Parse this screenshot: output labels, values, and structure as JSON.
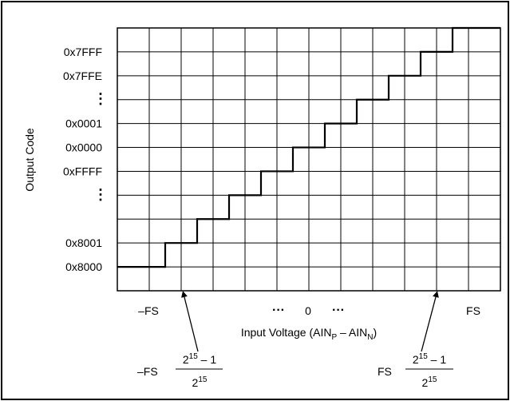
{
  "chart_data": {
    "type": "line",
    "step": true,
    "ylabel": "Output Code",
    "xlabel_parts": {
      "main": "Input Voltage (AIN",
      "sub_p": "P",
      "minus": " – AIN",
      "sub_n": "N",
      "close": ")"
    },
    "y_ticks": [
      "0x7FFF",
      "0x7FFE",
      "⋮",
      "0x0001",
      "0x0000",
      "0xFFFF",
      "⋮",
      "0x8001",
      "0x8000"
    ],
    "x_ticks": {
      "left": "–FS",
      "center_dots_left": "···",
      "center": "0",
      "center_dots_right": "···",
      "right": "FS"
    },
    "grid": true,
    "transfer_steps": [
      {
        "x": 0,
        "code": "0x8000"
      },
      {
        "x": 1.5,
        "code": "0x8001"
      },
      {
        "x": 2.5,
        "code": "…"
      },
      {
        "x": 3.5,
        "code": "…"
      },
      {
        "x": 4.5,
        "code": "…"
      },
      {
        "x": 5.5,
        "code": "0xFFFF"
      },
      {
        "x": 6.5,
        "code": "0x0000"
      },
      {
        "x": 7.5,
        "code": "0x0001"
      },
      {
        "x": 8.5,
        "code": "…"
      },
      {
        "x": 9.5,
        "code": "0x7FFE"
      },
      {
        "x": 10.5,
        "code": "0x7FFF"
      }
    ],
    "annotations": [
      {
        "prefix": "–FS",
        "numerator_base": "2",
        "numerator_exp": "15",
        "numerator_rest": " – 1",
        "denominator_base": "2",
        "denominator_exp": "15"
      },
      {
        "prefix": "FS",
        "numerator_base": "2",
        "numerator_exp": "15",
        "numerator_rest": " – 1",
        "denominator_base": "2",
        "denominator_exp": "15"
      }
    ]
  }
}
